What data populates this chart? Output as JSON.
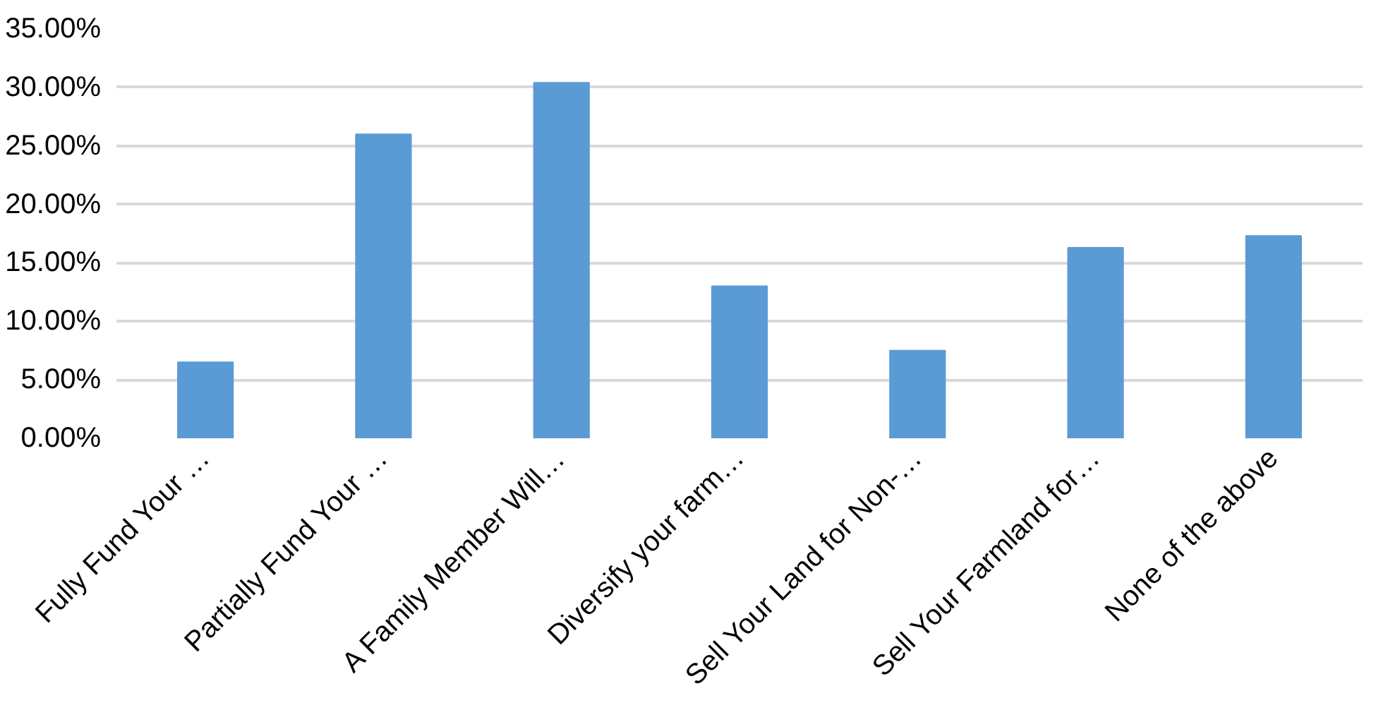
{
  "chart_data": {
    "type": "bar",
    "categories": [
      "Fully Fund Your …",
      "Partially Fund Your …",
      "A Family Member Will…",
      "Diversify your farm…",
      "Sell Your Land for Non-…",
      "Sell Your Farmland for…",
      "None of the above"
    ],
    "values": [
      6.5,
      26.0,
      30.4,
      13.0,
      7.5,
      16.3,
      17.3
    ],
    "color": "#5b9bd5",
    "ylim": [
      0,
      35
    ],
    "yticks": [
      {
        "value": 0,
        "label": "0.00%"
      },
      {
        "value": 5,
        "label": "5.00%"
      },
      {
        "value": 10,
        "label": "10.00%"
      },
      {
        "value": 15,
        "label": "15.00%"
      },
      {
        "value": 20,
        "label": "20.00%"
      },
      {
        "value": 25,
        "label": "25.00%"
      },
      {
        "value": 30,
        "label": "30.00%"
      },
      {
        "value": 35,
        "label": "35.00%"
      }
    ],
    "grid": "y"
  }
}
